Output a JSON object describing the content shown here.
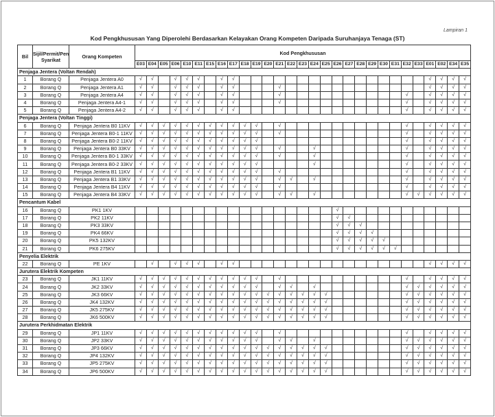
{
  "lampiran": "Lampiran 1",
  "title": "Kod Pengkhususan Yang Diperolehi Berdasarkan Kelayakan Orang Kompeten Daripada Suruhanjaya Tenaga (ST)",
  "headers": {
    "bil": "Bil",
    "sijil": "Sijil/Permit/Pendaftaran Syarikat",
    "orang": "Orang Kompeten",
    "kod": "Kod Pengkhususan"
  },
  "check_mark": "√",
  "codes": [
    "E03",
    "E04",
    "E05",
    "E06",
    "E10",
    "E11",
    "E15",
    "E16",
    "E17",
    "E18",
    "E19",
    "E20",
    "E21",
    "E22",
    "E23",
    "E24",
    "E25",
    "E26",
    "E27",
    "E28",
    "E29",
    "E30",
    "E31",
    "E32",
    "E33",
    "E01",
    "E02",
    "E34",
    "E35"
  ],
  "sections": [
    {
      "title": "Penjaga Jentera (Voltan Rendah)",
      "rows": [
        {
          "bil": "1",
          "sijil": "Borang Q",
          "orang": "Penjaga Jentera A0",
          "marks": "11011101100000000000000001111"
        },
        {
          "bil": "2",
          "sijil": "Borang Q",
          "orang": "Penjaga Jentera A1",
          "marks": "11011101100010000000000001111"
        },
        {
          "bil": "3",
          "sijil": "Borang Q",
          "orang": "Penjaga Jentera A4",
          "marks": "11011101100010000000000101111"
        },
        {
          "bil": "4",
          "sijil": "Borang Q",
          "orang": "Penjaga Jentera A4-1",
          "marks": "11011101100010000000000101111"
        },
        {
          "bil": "5",
          "sijil": "Borang Q",
          "orang": "Penjaga Jentera A4-2",
          "marks": "11011101100000000000000101111"
        }
      ]
    },
    {
      "title": "Penjaga Jentera (Voltan Tinggi)",
      "rows": [
        {
          "bil": "6",
          "sijil": "Borang Q",
          "orang": "Penjaga Jentera B0 11KV",
          "marks": "11111111111010000000000101111"
        },
        {
          "bil": "7",
          "sijil": "Borang Q",
          "orang": "Penjaga Jentera B0-1 11KV",
          "marks": "11111111111010000000000101111"
        },
        {
          "bil": "8",
          "sijil": "Borang Q",
          "orang": "Penjaga Jentera B0-2 11KV",
          "marks": "11111111111000000000000101111"
        },
        {
          "bil": "9",
          "sijil": "Borang Q",
          "orang": "Penjaga Jentera B0 33KV",
          "marks": "11111111111010010000000101111"
        },
        {
          "bil": "10",
          "sijil": "Borang Q",
          "orang": "Penjaga Jentera B0-1 33KV",
          "marks": "11111111111010010000000101111"
        },
        {
          "bil": "11",
          "sijil": "Borang Q",
          "orang": "Penjaga Jentera B0-2 33KV",
          "marks": "11111111111000010000000101111"
        },
        {
          "bil": "12",
          "sijil": "Borang Q",
          "orang": "Penjaga Jentera B1 11KV",
          "marks": "11111111111010000000000101111"
        },
        {
          "bil": "13",
          "sijil": "Borang Q",
          "orang": "Penjaga Jentera B1 33KV",
          "marks": "11111111111011010000000101111"
        },
        {
          "bil": "14",
          "sijil": "Borang Q",
          "orang": "Penjaga Jentera B4 11KV",
          "marks": "11111111111010000000000101111"
        },
        {
          "bil": "15",
          "sijil": "Borang Q",
          "orang": "Penjaga Jentera B4 33KV",
          "marks": "11111111111011010000000111111"
        }
      ]
    },
    {
      "title": "Pencantum Kabel",
      "rows": [
        {
          "bil": "16",
          "sijil": "Borang Q",
          "orang": "PK1 1KV",
          "marks": "00000000000000000100000000000"
        },
        {
          "bil": "17",
          "sijil": "Borang Q",
          "orang": "PK2 11KV",
          "marks": "00000000000000000110000000000"
        },
        {
          "bil": "18",
          "sijil": "Borang Q",
          "orang": "PK3 33KV",
          "marks": "00000000000000000111000000000"
        },
        {
          "bil": "19",
          "sijil": "Borang Q",
          "orang": "PK4 66KV",
          "marks": "00000000000000000111100000000"
        },
        {
          "bil": "20",
          "sijil": "Borang Q",
          "orang": "PK5 132KV",
          "marks": "00000000000000000111110000000"
        },
        {
          "bil": "21",
          "sijil": "Borang Q",
          "orang": "PK6 275KV",
          "marks": "00000000000000000111111000000"
        }
      ]
    },
    {
      "title": "Penyelia Elektrik",
      "rows": [
        {
          "bil": "22",
          "sijil": "Borang Q",
          "orang": "PE 1KV",
          "marks": "01011101100000000000000001111"
        }
      ]
    },
    {
      "title": "Jurutera Elektrik Kompeten",
      "rows": [
        {
          "bil": "23",
          "sijil": "Borang Q",
          "orang": "JK1 11KV",
          "marks": "11111111111010000000000101111"
        },
        {
          "bil": "24",
          "sijil": "Borang Q",
          "orang": "JK2 33KV",
          "marks": "11111111111011010000000111111"
        },
        {
          "bil": "25",
          "sijil": "Borang Q",
          "orang": "JK3 66KV",
          "marks": "11111111111111111000000111111"
        },
        {
          "bil": "26",
          "sijil": "Borang Q",
          "orang": "JK4 132KV",
          "marks": "11111111111111111000000111111"
        },
        {
          "bil": "27",
          "sijil": "Borang Q",
          "orang": "JK5 275KV",
          "marks": "11111111111111111000000111111"
        },
        {
          "bil": "28",
          "sijil": "Borang Q",
          "orang": "JK6 500KV",
          "marks": "11111111111111111000000111111"
        }
      ]
    },
    {
      "title": "Jurutera Perkhidmatan Elektrik",
      "rows": [
        {
          "bil": "29",
          "sijil": "Borang Q",
          "orang": "JP1 11KV",
          "marks": "11111111111010000000000101111"
        },
        {
          "bil": "30",
          "sijil": "Borang Q",
          "orang": "JP2 33KV",
          "marks": "11111111111011010000000111111"
        },
        {
          "bil": "31",
          "sijil": "Borang Q",
          "orang": "JP3 66KV",
          "marks": "11111111111111111000000111111"
        },
        {
          "bil": "32",
          "sijil": "Borang Q",
          "orang": "JP4 132KV",
          "marks": "11111111111111111000000111111"
        },
        {
          "bil": "33",
          "sijil": "Borang Q",
          "orang": "JP5 275KV",
          "marks": "11111111111111111000000111111"
        },
        {
          "bil": "34",
          "sijil": "Borang Q",
          "orang": "JP6 500KV",
          "marks": "11111111111111111000000111111"
        }
      ]
    }
  ]
}
